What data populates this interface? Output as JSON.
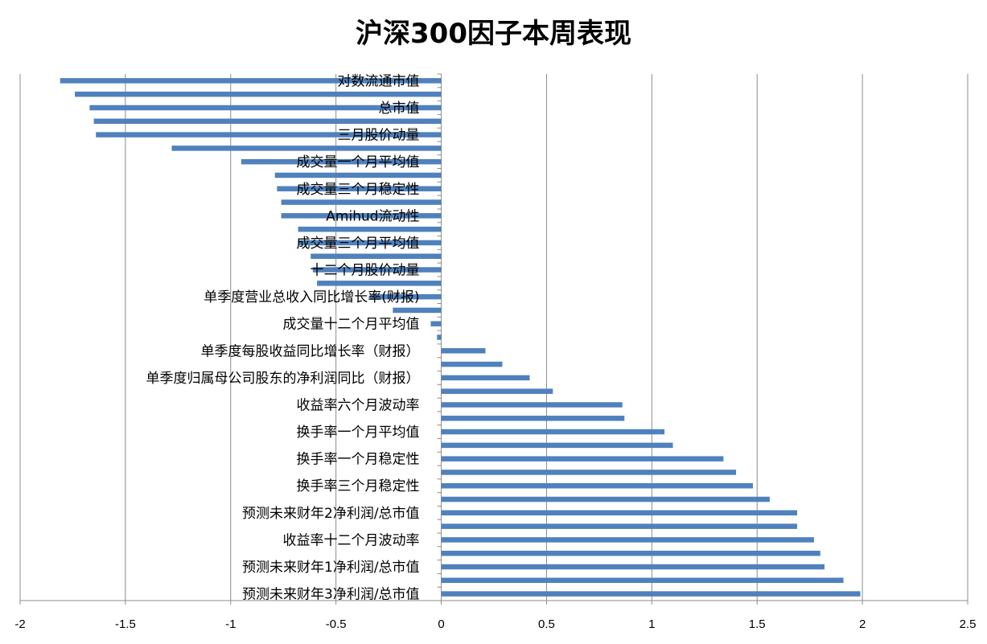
{
  "chart_data": {
    "type": "bar",
    "orientation": "horizontal",
    "title": "沪深300因子本周表现",
    "xlabel": "",
    "ylabel": "",
    "xlim": [
      -2,
      2.5
    ],
    "xticks": [
      "-2",
      "-1.5",
      "-1",
      "-0.5",
      "0",
      "0.5",
      "1",
      "1.5",
      "2",
      "2.5"
    ],
    "grid": "vertical",
    "legend": "none",
    "bar_color": "#4F81BD",
    "bars": [
      {
        "label": "对数流通市值",
        "value": -1.81
      },
      {
        "label": "",
        "value": -1.74
      },
      {
        "label": "总市值",
        "value": -1.67
      },
      {
        "label": "",
        "value": -1.65
      },
      {
        "label": "三月股价动量",
        "value": -1.64
      },
      {
        "label": "",
        "value": -1.28
      },
      {
        "label": "成交量一个月平均值",
        "value": -0.95
      },
      {
        "label": "",
        "value": -0.79
      },
      {
        "label": "成交量三个月稳定性",
        "value": -0.78
      },
      {
        "label": "",
        "value": -0.76
      },
      {
        "label": "Amihud流动性",
        "value": -0.76
      },
      {
        "label": "",
        "value": -0.68
      },
      {
        "label": "成交量三个月平均值",
        "value": -0.68
      },
      {
        "label": "",
        "value": -0.62
      },
      {
        "label": "十二个月股价动量",
        "value": -0.61
      },
      {
        "label": "",
        "value": -0.59
      },
      {
        "label": "单季度营业总收入同比增长率(财报)",
        "value": -0.34
      },
      {
        "label": "",
        "value": -0.23
      },
      {
        "label": "成交量十二个月平均值",
        "value": -0.05
      },
      {
        "label": "",
        "value": -0.02
      },
      {
        "label": "单季度每股收益同比增长率（财报）",
        "value": 0.21
      },
      {
        "label": "",
        "value": 0.29
      },
      {
        "label": "单季度归属母公司股东的净利润同比（财报）",
        "value": 0.42
      },
      {
        "label": "",
        "value": 0.53
      },
      {
        "label": "收益率六个月波动率",
        "value": 0.86
      },
      {
        "label": "",
        "value": 0.87
      },
      {
        "label": "换手率一个月平均值",
        "value": 1.06
      },
      {
        "label": "",
        "value": 1.1
      },
      {
        "label": "换手率一个月稳定性",
        "value": 1.34
      },
      {
        "label": "",
        "value": 1.4
      },
      {
        "label": "换手率三个月稳定性",
        "value": 1.48
      },
      {
        "label": "",
        "value": 1.56
      },
      {
        "label": "预测未来财年2净利润/总市值",
        "value": 1.69
      },
      {
        "label": "",
        "value": 1.69
      },
      {
        "label": "收益率十二个月波动率",
        "value": 1.77
      },
      {
        "label": "",
        "value": 1.8
      },
      {
        "label": "预测未来财年1净利润/总市值",
        "value": 1.82
      },
      {
        "label": "",
        "value": 1.91
      },
      {
        "label": "预测未来财年3净利润/总市值",
        "value": 1.99
      }
    ]
  }
}
